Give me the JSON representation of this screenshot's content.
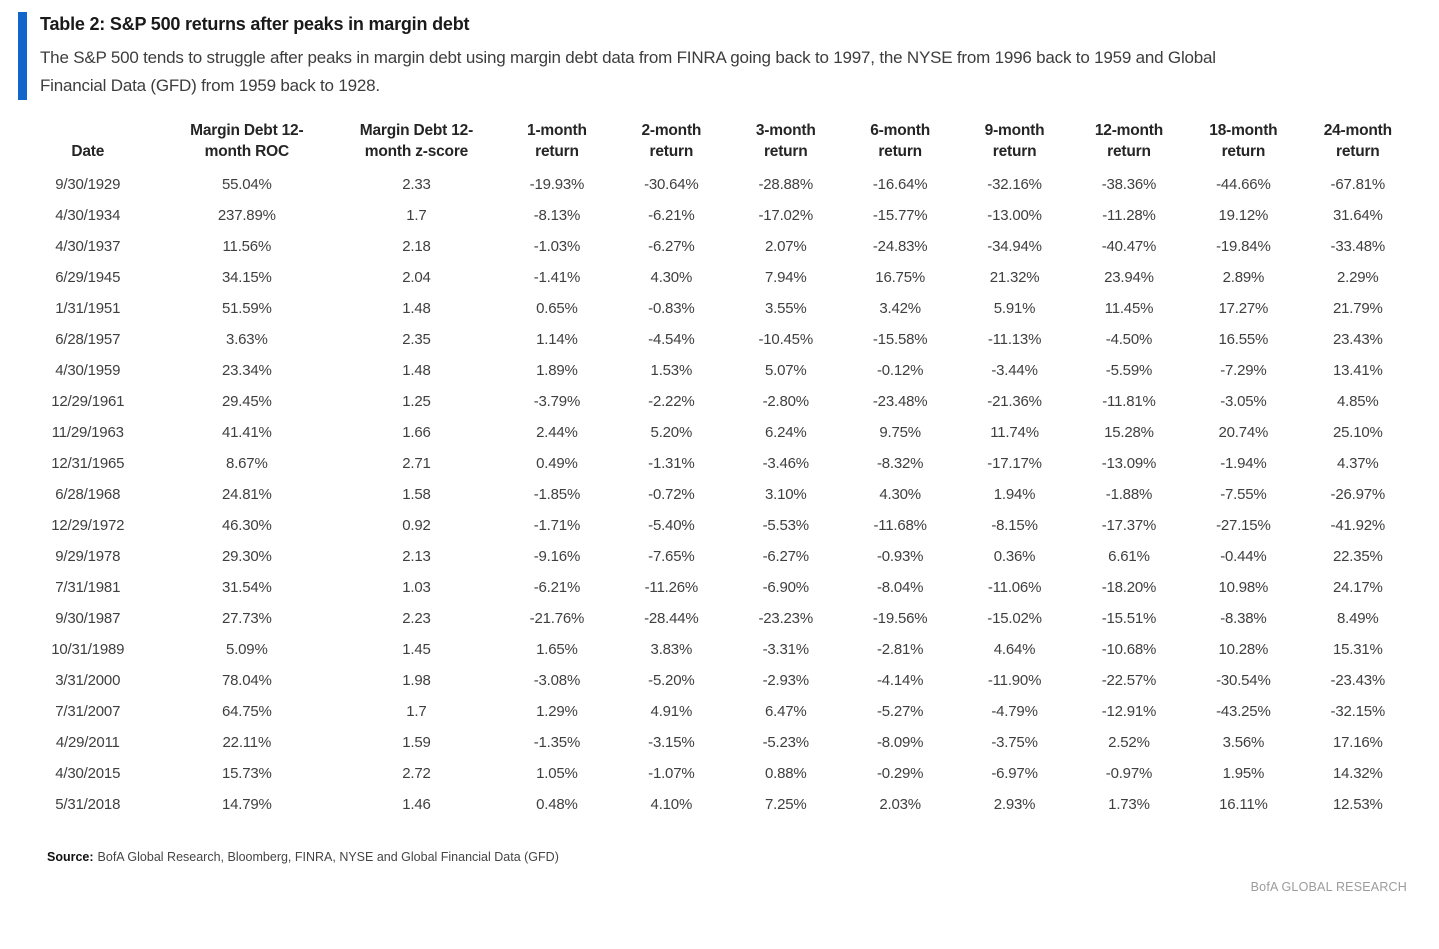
{
  "header": {
    "title": "Table 2: S&P 500 returns after peaks in margin debt",
    "subtitle": "The S&P 500 tends to struggle after peaks in margin debt using margin debt data from FINRA going back to 1997, the NYSE from 1996 back to 1959 and Global Financial Data (GFD) from 1959 back to 1928."
  },
  "colors": {
    "accent_blue": "#1266CB"
  },
  "table": {
    "columns": [
      "Date",
      "Margin Debt 12-month ROC",
      "Margin Debt 12-month z-score",
      "1-month return",
      "2-month return",
      "3-month return",
      "6-month return",
      "9-month return",
      "12-month return",
      "18-month return",
      "24-month return"
    ],
    "rows": [
      [
        "9/30/1929",
        "55.04%",
        "2.33",
        "-19.93%",
        "-30.64%",
        "-28.88%",
        "-16.64%",
        "-32.16%",
        "-38.36%",
        "-44.66%",
        "-67.81%"
      ],
      [
        "4/30/1934",
        "237.89%",
        "1.7",
        "-8.13%",
        "-6.21%",
        "-17.02%",
        "-15.77%",
        "-13.00%",
        "-11.28%",
        "19.12%",
        "31.64%"
      ],
      [
        "4/30/1937",
        "11.56%",
        "2.18",
        "-1.03%",
        "-6.27%",
        "2.07%",
        "-24.83%",
        "-34.94%",
        "-40.47%",
        "-19.84%",
        "-33.48%"
      ],
      [
        "6/29/1945",
        "34.15%",
        "2.04",
        "-1.41%",
        "4.30%",
        "7.94%",
        "16.75%",
        "21.32%",
        "23.94%",
        "2.89%",
        "2.29%"
      ],
      [
        "1/31/1951",
        "51.59%",
        "1.48",
        "0.65%",
        "-0.83%",
        "3.55%",
        "3.42%",
        "5.91%",
        "11.45%",
        "17.27%",
        "21.79%"
      ],
      [
        "6/28/1957",
        "3.63%",
        "2.35",
        "1.14%",
        "-4.54%",
        "-10.45%",
        "-15.58%",
        "-11.13%",
        "-4.50%",
        "16.55%",
        "23.43%"
      ],
      [
        "4/30/1959",
        "23.34%",
        "1.48",
        "1.89%",
        "1.53%",
        "5.07%",
        "-0.12%",
        "-3.44%",
        "-5.59%",
        "-7.29%",
        "13.41%"
      ],
      [
        "12/29/1961",
        "29.45%",
        "1.25",
        "-3.79%",
        "-2.22%",
        "-2.80%",
        "-23.48%",
        "-21.36%",
        "-11.81%",
        "-3.05%",
        "4.85%"
      ],
      [
        "11/29/1963",
        "41.41%",
        "1.66",
        "2.44%",
        "5.20%",
        "6.24%",
        "9.75%",
        "11.74%",
        "15.28%",
        "20.74%",
        "25.10%"
      ],
      [
        "12/31/1965",
        "8.67%",
        "2.71",
        "0.49%",
        "-1.31%",
        "-3.46%",
        "-8.32%",
        "-17.17%",
        "-13.09%",
        "-1.94%",
        "4.37%"
      ],
      [
        "6/28/1968",
        "24.81%",
        "1.58",
        "-1.85%",
        "-0.72%",
        "3.10%",
        "4.30%",
        "1.94%",
        "-1.88%",
        "-7.55%",
        "-26.97%"
      ],
      [
        "12/29/1972",
        "46.30%",
        "0.92",
        "-1.71%",
        "-5.40%",
        "-5.53%",
        "-11.68%",
        "-8.15%",
        "-17.37%",
        "-27.15%",
        "-41.92%"
      ],
      [
        "9/29/1978",
        "29.30%",
        "2.13",
        "-9.16%",
        "-7.65%",
        "-6.27%",
        "-0.93%",
        "0.36%",
        "6.61%",
        "-0.44%",
        "22.35%"
      ],
      [
        "7/31/1981",
        "31.54%",
        "1.03",
        "-6.21%",
        "-11.26%",
        "-6.90%",
        "-8.04%",
        "-11.06%",
        "-18.20%",
        "10.98%",
        "24.17%"
      ],
      [
        "9/30/1987",
        "27.73%",
        "2.23",
        "-21.76%",
        "-28.44%",
        "-23.23%",
        "-19.56%",
        "-15.02%",
        "-15.51%",
        "-8.38%",
        "8.49%"
      ],
      [
        "10/31/1989",
        "5.09%",
        "1.45",
        "1.65%",
        "3.83%",
        "-3.31%",
        "-2.81%",
        "4.64%",
        "-10.68%",
        "10.28%",
        "15.31%"
      ],
      [
        "3/31/2000",
        "78.04%",
        "1.98",
        "-3.08%",
        "-5.20%",
        "-2.93%",
        "-4.14%",
        "-11.90%",
        "-22.57%",
        "-30.54%",
        "-23.43%"
      ],
      [
        "7/31/2007",
        "64.75%",
        "1.7",
        "1.29%",
        "4.91%",
        "6.47%",
        "-5.27%",
        "-4.79%",
        "-12.91%",
        "-43.25%",
        "-32.15%"
      ],
      [
        "4/29/2011",
        "22.11%",
        "1.59",
        "-1.35%",
        "-3.15%",
        "-5.23%",
        "-8.09%",
        "-3.75%",
        "2.52%",
        "3.56%",
        "17.16%"
      ],
      [
        "4/30/2015",
        "15.73%",
        "2.72",
        "1.05%",
        "-1.07%",
        "0.88%",
        "-0.29%",
        "-6.97%",
        "-0.97%",
        "1.95%",
        "14.32%"
      ],
      [
        "5/31/2018",
        "14.79%",
        "1.46",
        "0.48%",
        "4.10%",
        "7.25%",
        "2.03%",
        "2.93%",
        "1.73%",
        "16.11%",
        "12.53%"
      ]
    ]
  },
  "footer": {
    "source_label": "Source:",
    "source_text": "BofA Global Research, Bloomberg, FINRA, NYSE and Global Financial Data (GFD)",
    "brand": "BofA GLOBAL RESEARCH"
  }
}
